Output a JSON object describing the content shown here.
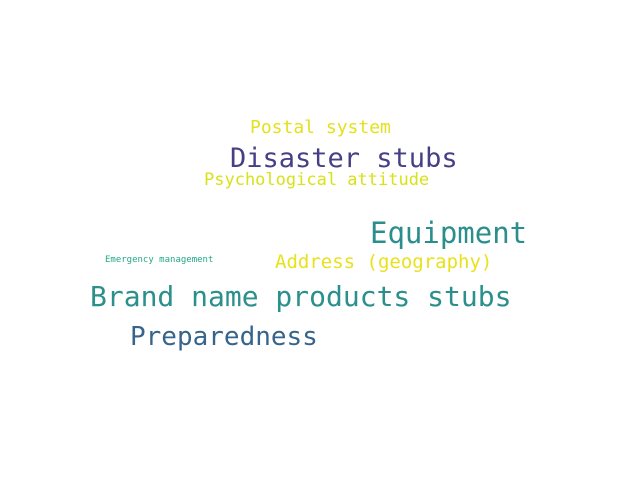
{
  "words": [
    {
      "text": "Postal system",
      "color": "#e2e21f"
    },
    {
      "text": "Disaster stubs",
      "color": "#463f85"
    },
    {
      "text": "Psychological attitude",
      "color": "#d8e219"
    },
    {
      "text": "Equipment",
      "color": "#2a8e8c"
    },
    {
      "text": "Emergency management",
      "color": "#24a883"
    },
    {
      "text": "Address (geography)",
      "color": "#e8e21c"
    },
    {
      "text": "Brand name products stubs",
      "color": "#2b8f8b"
    },
    {
      "text": "Preparedness",
      "color": "#36648c"
    }
  ]
}
